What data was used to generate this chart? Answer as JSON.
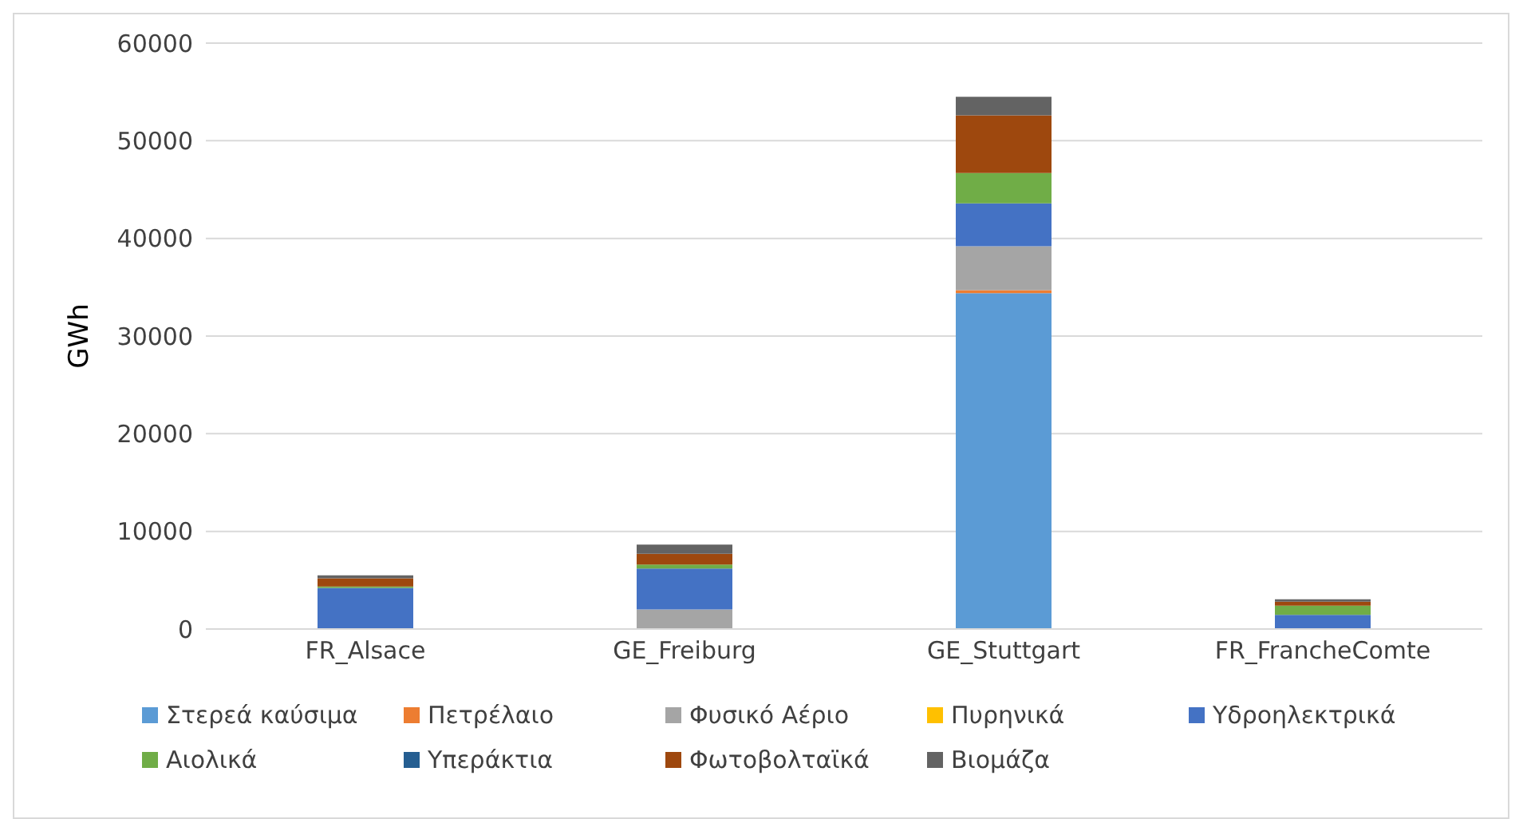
{
  "chart_data": {
    "type": "bar",
    "stacked": true,
    "ylabel": "GWh",
    "categories": [
      "FR_Alsace",
      "GE_Freiburg",
      "GE_Stuttgart",
      "FR_FrancheComte"
    ],
    "series": [
      {
        "name": "Στερεά καύσιμα",
        "color": "#5b9bd5",
        "values": [
          0,
          0,
          34400,
          0
        ]
      },
      {
        "name": "Πετρέλαιο",
        "color": "#ed7d31",
        "values": [
          0,
          0,
          300,
          0
        ]
      },
      {
        "name": "Φυσικό Αέριο",
        "color": "#a5a5a5",
        "values": [
          0,
          2000,
          4500,
          0
        ]
      },
      {
        "name": "Πυρηνικά",
        "color": "#ffc000",
        "values": [
          0,
          0,
          0,
          0
        ]
      },
      {
        "name": "Υδροηλεκτρικά",
        "color": "#4472c4",
        "values": [
          4200,
          4200,
          4400,
          1450
        ]
      },
      {
        "name": "Αιολικά",
        "color": "#70ad47",
        "values": [
          150,
          400,
          3100,
          950
        ]
      },
      {
        "name": "Υπεράκτια",
        "color": "#255e91",
        "values": [
          0,
          0,
          0,
          0
        ]
      },
      {
        "name": "Φωτοβολταϊκά",
        "color": "#9e480e",
        "values": [
          850,
          1100,
          5900,
          400
        ]
      },
      {
        "name": "Βιομάζα",
        "color": "#636363",
        "values": [
          300,
          950,
          1900,
          250
        ]
      }
    ],
    "ylim": [
      0,
      60000
    ],
    "yticks": [
      0,
      10000,
      20000,
      30000,
      40000,
      50000,
      60000
    ],
    "grid": "y",
    "legend": "bottom"
  }
}
